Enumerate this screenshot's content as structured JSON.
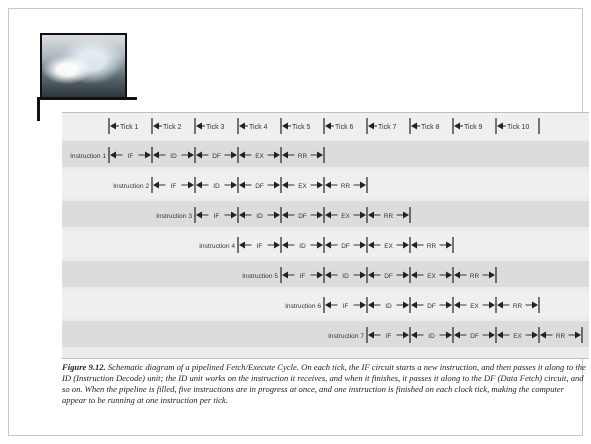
{
  "ticks": [
    "Tick 1",
    "Tick 2",
    "Tick 3",
    "Tick 4",
    "Tick 5",
    "Tick 6",
    "Tick 7",
    "Tick 8",
    "Tick 9",
    "Tick 10"
  ],
  "instructions": [
    "Instruction 1",
    "Instruction 2",
    "Instruction 3",
    "Instruction 4",
    "Instruction 5",
    "Instruction 6",
    "Instruction 7"
  ],
  "stages": [
    "IF",
    "ID",
    "DF",
    "EX",
    "RR"
  ],
  "caption": {
    "lead": "Figure 9.12.",
    "body": "Schematic diagram of a pipelined Fetch/Execute Cycle. On each tick, the IF circuit starts a new instruction, and then passes it along to the ID (Instruction Decode) unit; the ID unit works on the instruction it receives, and when it finishes, it passes it along to the DF (Data Fetch) circuit, and so on. When the pipeline is filled, five instructions are in progress at once, and one instruction is finished on each clock tick, making the computer appear to be running at one instruction per tick."
  }
}
